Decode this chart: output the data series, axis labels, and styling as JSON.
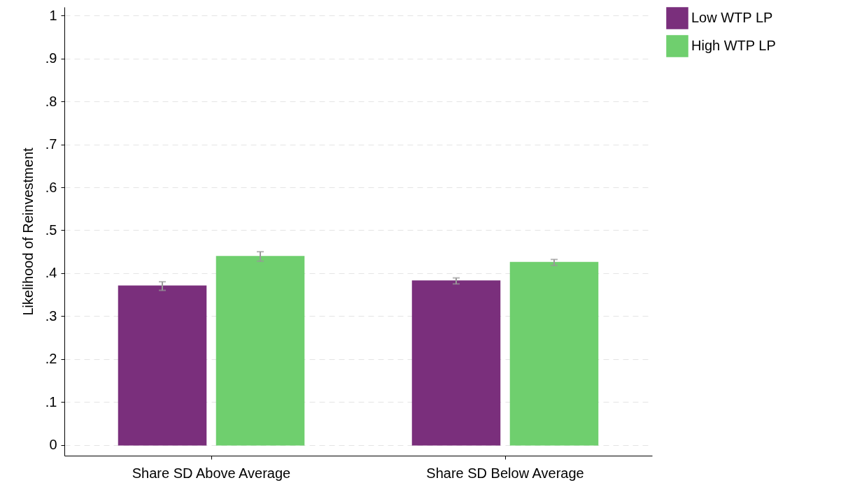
{
  "chart_data": {
    "type": "bar",
    "ylabel": "Likelihood of Reinvestment",
    "categories": [
      "Share SD Above Average",
      "Share SD Below Average"
    ],
    "series": [
      {
        "name": "Low WTP LP",
        "color": "#7a2f7c",
        "values": [
          0.37,
          0.382
        ],
        "errors": [
          0.01,
          0.007
        ]
      },
      {
        "name": "High WTP LP",
        "color": "#6fcf6e",
        "values": [
          0.439,
          0.425
        ],
        "errors": [
          0.011,
          0.007
        ]
      }
    ],
    "ylim": [
      -0.025,
      1.02
    ],
    "yticks": [
      {
        "value": 0,
        "label": "0"
      },
      {
        "value": 0.1,
        "label": ".1"
      },
      {
        "value": 0.2,
        "label": ".2"
      },
      {
        "value": 0.3,
        "label": ".3"
      },
      {
        "value": 0.4,
        "label": ".4"
      },
      {
        "value": 0.5,
        "label": ".5"
      },
      {
        "value": 0.6,
        "label": ".6"
      },
      {
        "value": 0.7,
        "label": ".7"
      },
      {
        "value": 0.8,
        "label": ".8"
      },
      {
        "value": 0.9,
        "label": ".9"
      },
      {
        "value": 1,
        "label": "1"
      }
    ],
    "grid": "y",
    "legend": "right"
  }
}
